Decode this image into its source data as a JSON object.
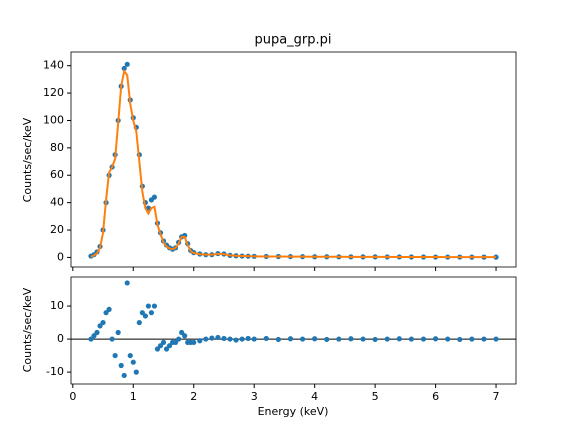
{
  "chart_data": [
    {
      "type": "scatter",
      "title": "pupa_grp.pi",
      "ylabel": "Counts/sec/keV",
      "x": [
        0.3,
        0.35,
        0.4,
        0.45,
        0.5,
        0.55,
        0.6,
        0.65,
        0.7,
        0.75,
        0.8,
        0.85,
        0.9,
        0.95,
        1.0,
        1.05,
        1.1,
        1.15,
        1.2,
        1.25,
        1.3,
        1.35,
        1.4,
        1.45,
        1.5,
        1.55,
        1.6,
        1.65,
        1.7,
        1.75,
        1.8,
        1.85,
        1.9,
        1.95,
        2.0,
        2.1,
        2.2,
        2.3,
        2.4,
        2.5,
        2.6,
        2.7,
        2.8,
        2.9,
        3.0,
        3.2,
        3.4,
        3.6,
        3.8,
        4.0,
        4.2,
        4.4,
        4.6,
        4.8,
        5.0,
        5.2,
        5.4,
        5.6,
        5.8,
        6.0,
        6.2,
        6.4,
        6.6,
        6.8,
        7.0
      ],
      "series": [
        {
          "type": "scatter",
          "color": "#1f77b4",
          "values": [
            1,
            2,
            4,
            8,
            20,
            40,
            60,
            66,
            75,
            100,
            125,
            138,
            141,
            115,
            102,
            95,
            75,
            52,
            40,
            36,
            42,
            44,
            25,
            18,
            12,
            9,
            7,
            6,
            7,
            11,
            15,
            16,
            10,
            5,
            3.5,
            2.5,
            2,
            2,
            2.8,
            2.5,
            1.5,
            1.2,
            1,
            0.9,
            0.8,
            0.7,
            0.65,
            0.6,
            0.55,
            0.5,
            0.48,
            0.45,
            0.42,
            0.4,
            0.38,
            0.35,
            0.33,
            0.3,
            0.28,
            0.27,
            0.25,
            0.24,
            0.22,
            0.21,
            0.2
          ]
        },
        {
          "type": "line",
          "color": "#ff7f0e",
          "values": [
            0.5,
            1.5,
            3,
            7,
            18,
            42,
            62,
            66,
            72,
            98,
            125,
            136,
            133,
            112,
            100,
            92,
            70,
            48,
            36,
            32,
            36,
            37,
            24,
            17,
            11,
            8,
            6.5,
            6,
            7,
            10,
            15,
            15,
            9,
            4.5,
            3.2,
            2.3,
            2,
            2,
            2.6,
            2.4,
            1.5,
            1.2,
            1,
            0.9,
            0.8,
            0.7,
            0.65,
            0.6,
            0.55,
            0.5,
            0.48,
            0.45,
            0.42,
            0.4,
            0.38,
            0.35,
            0.33,
            0.3,
            0.28,
            0.27,
            0.25,
            0.24,
            0.22,
            0.21,
            0.2
          ]
        }
      ],
      "xlim": [
        -0.03,
        7.33
      ],
      "ylim": [
        -7,
        150
      ],
      "yticks": [
        0,
        20,
        40,
        60,
        80,
        100,
        120,
        140
      ]
    },
    {
      "type": "scatter",
      "ylabel": "Counts/sec/keV",
      "xlabel": "Energy (keV)",
      "hline": 0,
      "x": [
        0.3,
        0.35,
        0.4,
        0.45,
        0.5,
        0.55,
        0.6,
        0.65,
        0.7,
        0.75,
        0.8,
        0.85,
        0.9,
        0.95,
        1.0,
        1.05,
        1.1,
        1.15,
        1.2,
        1.25,
        1.3,
        1.35,
        1.4,
        1.45,
        1.5,
        1.55,
        1.6,
        1.65,
        1.7,
        1.75,
        1.8,
        1.85,
        1.9,
        1.95,
        2.0,
        2.1,
        2.2,
        2.3,
        2.4,
        2.5,
        2.6,
        2.7,
        2.8,
        2.9,
        3.0,
        3.2,
        3.4,
        3.6,
        3.8,
        4.0,
        4.2,
        4.4,
        4.6,
        4.8,
        5.0,
        5.2,
        5.4,
        5.6,
        5.8,
        6.0,
        6.2,
        6.4,
        6.6,
        6.8,
        7.0
      ],
      "series": [
        {
          "type": "scatter",
          "color": "#1f77b4",
          "values": [
            0,
            1,
            2,
            4,
            5,
            8,
            9,
            0,
            -5,
            2,
            -8,
            -11,
            17,
            -5,
            -7,
            -10,
            5,
            8,
            7,
            10,
            8,
            10,
            -3,
            -2,
            -1,
            -3,
            -2,
            -1,
            -1,
            0,
            2,
            1,
            -1,
            -1,
            -1,
            -0.5,
            0,
            0.3,
            0.5,
            0.2,
            0,
            -0.3,
            0,
            0.2,
            0,
            0.2,
            -0.1,
            0.1,
            0,
            0.1,
            -0.1,
            0,
            0.1,
            0,
            -0.1,
            0,
            0.1,
            0,
            0,
            0.1,
            0,
            -0.1,
            0,
            0,
            0
          ]
        }
      ],
      "xlim": [
        -0.03,
        7.33
      ],
      "ylim": [
        -13.6,
        18.8
      ],
      "yticks": [
        -10,
        0,
        10
      ],
      "xticks": [
        0,
        1,
        2,
        3,
        4,
        5,
        6,
        7
      ]
    }
  ]
}
